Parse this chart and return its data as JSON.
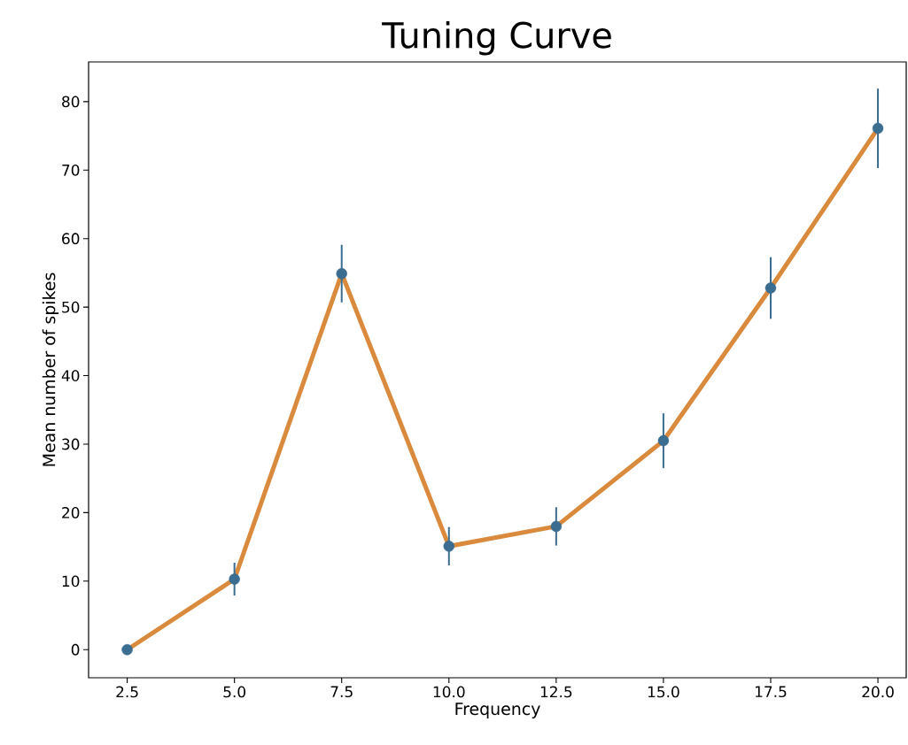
{
  "chart_data": {
    "type": "line",
    "title": "Tuning Curve",
    "xlabel": "Frequency",
    "ylabel": "Mean number of spikes",
    "xlim": [
      1.6,
      20.66
    ],
    "ylim": [
      -4.1,
      85.8
    ],
    "xticks": [
      2.5,
      {
        "value": 5,
        "label": "5.0"
      },
      7.5,
      {
        "value": 10,
        "label": "10.0"
      },
      12.5,
      {
        "value": 15,
        "label": "15.0"
      },
      17.5,
      {
        "value": 20,
        "label": "20.0"
      }
    ],
    "yticks": [
      0,
      10,
      20,
      30,
      40,
      50,
      60,
      70,
      80
    ],
    "series": [
      {
        "color": "#d98a3c",
        "line_style": "solid",
        "x": [
          2.5,
          5,
          7.5,
          10,
          12.5,
          15,
          17.5,
          20
        ],
        "values": [
          0,
          10.3,
          54.9,
          15.1,
          18.0,
          30.5,
          52.8,
          76.1
        ]
      },
      {
        "type": "scatter",
        "color": "#3a6d8f",
        "marker": "circle",
        "x": [
          2.5,
          5,
          7.5,
          10,
          12.5,
          15,
          17.5,
          20
        ],
        "values": [
          0,
          10.3,
          54.9,
          15.1,
          18.0,
          30.5,
          52.8,
          76.1
        ],
        "errors": [
          null,
          2.4,
          4.2,
          2.8,
          2.8,
          4.0,
          4.5,
          5.8
        ]
      }
    ]
  }
}
